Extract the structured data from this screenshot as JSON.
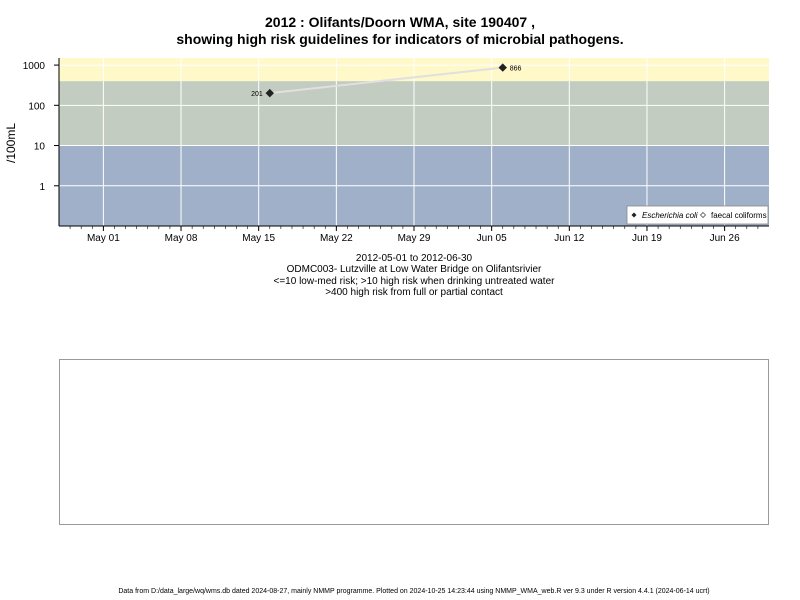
{
  "header": {
    "title_line1": "2012 : Olifants/Doorn WMA, site 190407 ,",
    "title_line2": "showing high risk guidelines for indicators of microbial pathogens."
  },
  "chart_data": {
    "type": "scatter",
    "ylabel": "/100mL",
    "yscale": "log",
    "ylim": [
      0.1,
      1500
    ],
    "yticks": [
      1,
      10,
      100,
      1000
    ],
    "ytick_labels": [
      "1",
      "10",
      "100",
      "1000"
    ],
    "xlim": [
      "2012-04-27",
      "2012-06-30"
    ],
    "xticks": [
      "2012-05-01",
      "2012-05-08",
      "2012-05-15",
      "2012-05-22",
      "2012-05-29",
      "2012-06-05",
      "2012-06-12",
      "2012-06-19",
      "2012-06-26"
    ],
    "xtick_labels": [
      "May 01",
      "May 08",
      "May 15",
      "May 22",
      "May 29",
      "Jun 05",
      "Jun 12",
      "Jun 19",
      "Jun 26"
    ],
    "grid": true,
    "bands": [
      {
        "from": 0.1,
        "to": 10,
        "color": "#a0b0c8"
      },
      {
        "from": 10,
        "to": 400,
        "color": "#c2ccc0"
      },
      {
        "from": 400,
        "to": 1500,
        "color": "#fff8c8"
      }
    ],
    "series": [
      {
        "name": "Escherichia coli",
        "marker": "filled-diamond",
        "color": "#222222",
        "line_color": "#e0e0e0",
        "points": [
          {
            "x": "2012-05-16",
            "y": 201,
            "label": "201"
          },
          {
            "x": "2012-06-06",
            "y": 866,
            "label": "866"
          }
        ]
      },
      {
        "name": "faecal coliforms",
        "marker": "open-diamond",
        "color": "#555555",
        "points": []
      }
    ],
    "legend_position": "bottom-right"
  },
  "captions": {
    "date_range": "2012-05-01 to 2012-06-30",
    "site": "ODMC003- Lutzville at Low Water Bridge on Olifantsrivier",
    "risk_low": "<=10 low-med risk; >10 high risk when drinking untreated water",
    "risk_high": ">400 high risk from full or partial contact"
  },
  "footer": {
    "text": "Data from D:/data_large/wq/wms.db dated 2024-08-27, mainly NMMP programme. Plotted on 2024-10-25 14:23:44 using NMMP_WMA_web.R ver 9.3 under R version 4.4.1 (2024-06-14 ucrt)"
  },
  "colors": {
    "band_low": "#a0b0c8",
    "band_mid": "#c2ccc0",
    "band_high": "#fff8c8",
    "grid": "#ffffff",
    "series_line": "#e0e0e0"
  }
}
